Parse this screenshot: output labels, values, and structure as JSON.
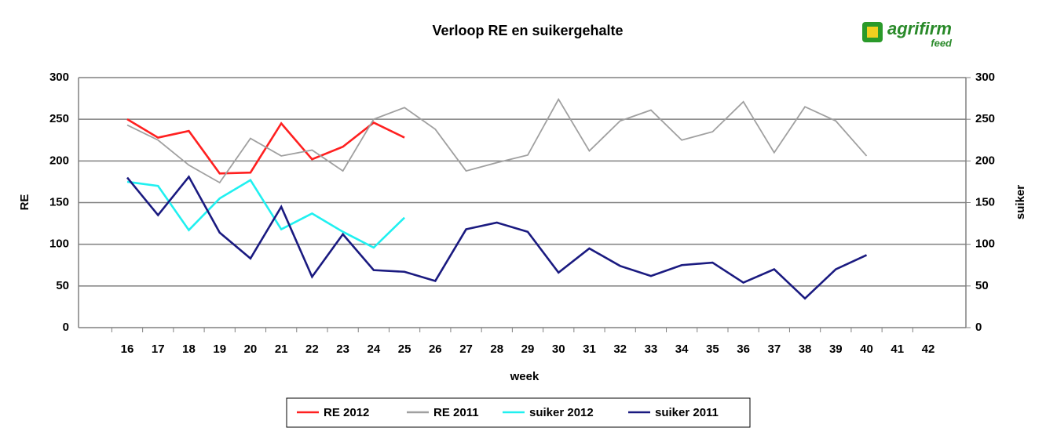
{
  "logo": {
    "name": "agrifirm",
    "sub": "feed"
  },
  "chart_data": {
    "type": "line",
    "title": "Verloop RE en suikergehalte",
    "x_label": "week",
    "y_label": "RE",
    "y2_label": "suiker",
    "categories": [
      "16",
      "17",
      "18",
      "19",
      "20",
      "21",
      "22",
      "23",
      "24",
      "25",
      "26",
      "27",
      "28",
      "29",
      "30",
      "31",
      "32",
      "33",
      "34",
      "35",
      "36",
      "37",
      "38",
      "39",
      "40",
      "41",
      "42"
    ],
    "ylim": [
      0,
      300
    ],
    "yticks": [
      0,
      50,
      100,
      150,
      200,
      250,
      300
    ],
    "y2lim": [
      0,
      300
    ],
    "y2ticks": [
      0,
      50,
      100,
      150,
      200,
      250,
      300
    ],
    "grid": true,
    "legend": "bottom",
    "series": [
      {
        "name": "RE 2012",
        "color": "#ff2020",
        "values": [
          250,
          228,
          236,
          185,
          186,
          245,
          202,
          217,
          246,
          228,
          null,
          null,
          null,
          null,
          null,
          null,
          null,
          null,
          null,
          null,
          null,
          null,
          null,
          null,
          null,
          null,
          null
        ]
      },
      {
        "name": "RE 2011",
        "color": "#a0a0a0",
        "values": [
          243,
          225,
          195,
          174,
          227,
          206,
          213,
          188,
          250,
          264,
          238,
          188,
          198,
          207,
          274,
          212,
          248,
          261,
          225,
          235,
          271,
          210,
          265,
          248,
          206,
          null,
          null
        ]
      },
      {
        "name": "suiker 2012",
        "color": "#20f0f0",
        "axis": "y2",
        "values": [
          175,
          170,
          117,
          155,
          177,
          118,
          137,
          115,
          96,
          132,
          null,
          null,
          null,
          null,
          null,
          null,
          null,
          null,
          null,
          null,
          null,
          null,
          null,
          null,
          null,
          null,
          null
        ]
      },
      {
        "name": "suiker 2011",
        "color": "#1a1a80",
        "axis": "y2",
        "values": [
          180,
          135,
          181,
          114,
          83,
          145,
          61,
          112,
          69,
          67,
          56,
          118,
          126,
          115,
          66,
          95,
          74,
          62,
          75,
          78,
          54,
          70,
          35,
          70,
          87,
          null,
          null
        ]
      }
    ]
  }
}
